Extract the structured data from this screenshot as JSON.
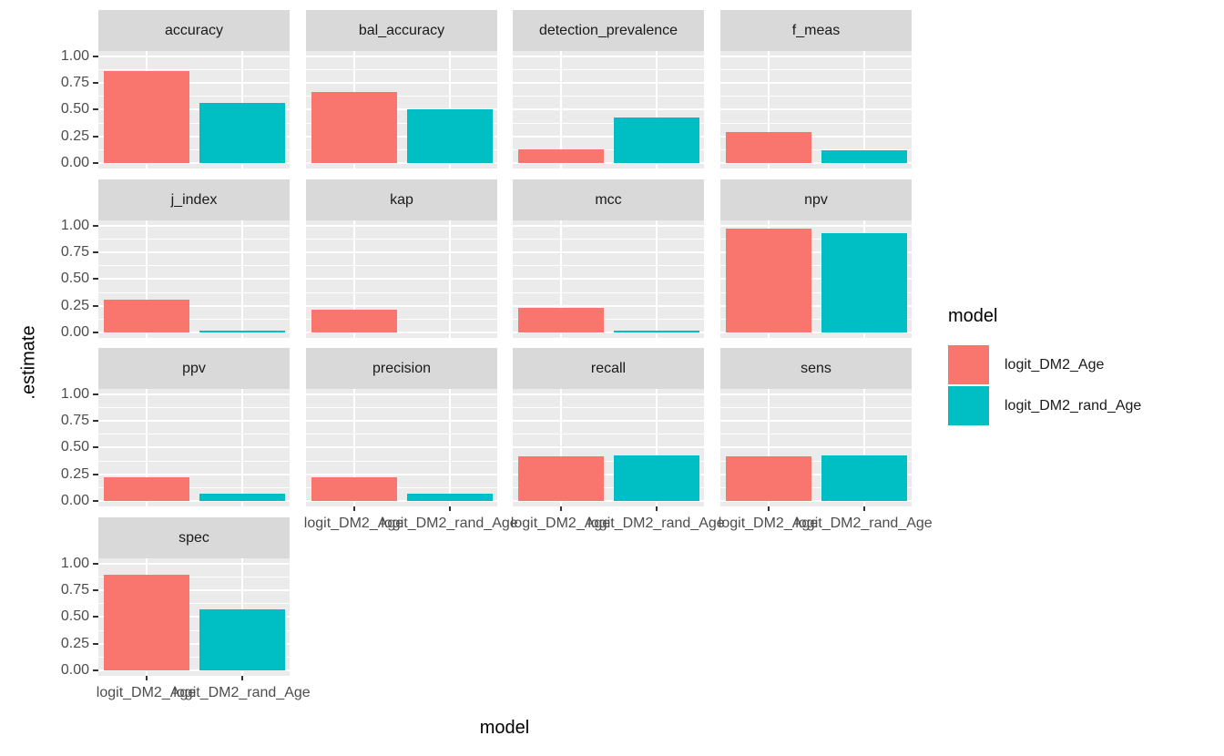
{
  "chart_data": {
    "type": "bar",
    "title": "",
    "xlabel": "model",
    "ylabel": ".estimate",
    "ylim": [
      0,
      1
    ],
    "grid": "on",
    "yticks": [
      {
        "label": "1.00",
        "value": 1.0
      },
      {
        "label": "0.75",
        "value": 0.75
      },
      {
        "label": "0.50",
        "value": 0.5
      },
      {
        "label": "0.25",
        "value": 0.25
      },
      {
        "label": "0.00",
        "value": 0.0
      }
    ],
    "minor_gridline_values": [
      0.125,
      0.375,
      0.625,
      0.875
    ],
    "categories": [
      "logit_DM2_Age",
      "logit_DM2_rand_Age"
    ],
    "legend": {
      "title": "model",
      "position": "right",
      "entries": [
        {
          "label": "logit_DM2_Age",
          "color": "#F8766D"
        },
        {
          "label": "logit_DM2_rand_Age",
          "color": "#00BFC4"
        }
      ]
    },
    "facets": [
      {
        "name": "accuracy",
        "values": [
          0.86,
          0.56
        ]
      },
      {
        "name": "bal_accuracy",
        "values": [
          0.67,
          0.5
        ]
      },
      {
        "name": "detection_prevalence",
        "values": [
          0.13,
          0.43
        ]
      },
      {
        "name": "f_meas",
        "values": [
          0.29,
          0.12
        ]
      },
      {
        "name": "j_index",
        "values": [
          0.31,
          0.01
        ]
      },
      {
        "name": "kap",
        "values": [
          0.21,
          0.0
        ]
      },
      {
        "name": "mcc",
        "values": [
          0.23,
          0.01
        ]
      },
      {
        "name": "npv",
        "values": [
          0.97,
          0.93
        ]
      },
      {
        "name": "ppv",
        "values": [
          0.22,
          0.07
        ]
      },
      {
        "name": "precision",
        "values": [
          0.22,
          0.07
        ]
      },
      {
        "name": "recall",
        "values": [
          0.42,
          0.43
        ]
      },
      {
        "name": "sens",
        "values": [
          0.42,
          0.43
        ]
      },
      {
        "name": "spec",
        "values": [
          0.9,
          0.57
        ]
      }
    ],
    "colors": {
      "panel_bg": "#EBEBEB",
      "strip_bg": "#D9D9D9",
      "gridline": "#FFFFFF",
      "tick": "#333333",
      "tick_label": "#4D4D4D",
      "text": "#000000"
    }
  }
}
